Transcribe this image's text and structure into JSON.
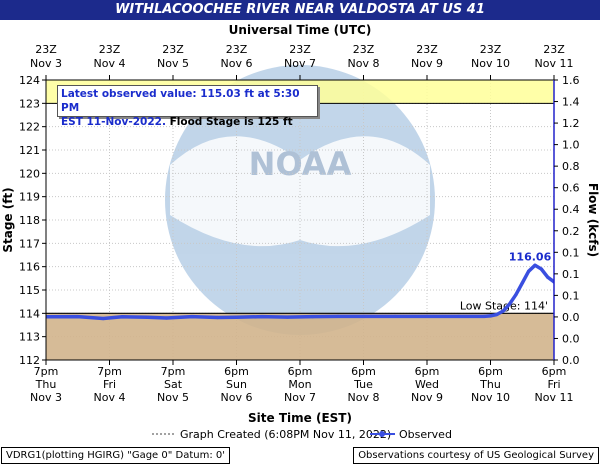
{
  "title": "WITHLACOOCHEE RIVER NEAR VALDOSTA AT US 41",
  "colors": {
    "title_bar": "#1c2a8c",
    "observed_line": "#3a4fe0",
    "flood_band": "#ffff99",
    "low_band": "#d2b48c"
  },
  "info": {
    "line1": "Latest observed value: 115.03 ft at 5:30 PM",
    "line2_date": "EST 11-Nov-2022.",
    "line2_flood": "Flood Stage is 125 ft"
  },
  "legend": {
    "graph_created": "Graph Created (6:08PM Nov 11, 2022)",
    "observed": "Observed"
  },
  "footer": {
    "left": "VDRG1(plotting HGIRG) \"Gage 0\" Datum: 0'",
    "right": "Observations courtesy of US Geological Survey"
  },
  "chart_data": {
    "type": "line",
    "title": "WITHLACOOCHEE RIVER NEAR VALDOSTA AT US 41",
    "xlabel": "Site Time (EST)",
    "x2label": "Universal Time (UTC)",
    "ylabel": "Stage (ft)",
    "y2label": "Flow (kcfs)",
    "ylim": [
      112,
      124
    ],
    "y2lim": [
      0.0,
      1.6
    ],
    "yticks": [
      112,
      113,
      114,
      115,
      116,
      117,
      118,
      119,
      120,
      121,
      122,
      123,
      124
    ],
    "y2ticks": [
      "0.0",
      "0.0",
      "0.0",
      "0.1",
      "0.1",
      "0.1",
      "0.2",
      "0.4",
      "0.6",
      "0.8",
      "1.0",
      "1.2",
      "1.4",
      "1.6"
    ],
    "x_bottom_ticks": [
      {
        "time": "7pm",
        "day": "Thu",
        "date": "Nov 3"
      },
      {
        "time": "7pm",
        "day": "Fri",
        "date": "Nov 4"
      },
      {
        "time": "7pm",
        "day": "Sat",
        "date": "Nov 5"
      },
      {
        "time": "6pm",
        "day": "Sun",
        "date": "Nov 6"
      },
      {
        "time": "6pm",
        "day": "Mon",
        "date": "Nov 7"
      },
      {
        "time": "6pm",
        "day": "Tue",
        "date": "Nov 8"
      },
      {
        "time": "6pm",
        "day": "Wed",
        "date": "Nov 9"
      },
      {
        "time": "6pm",
        "day": "Thu",
        "date": "Nov 10"
      },
      {
        "time": "6pm",
        "day": "Fri",
        "date": "Nov 11"
      }
    ],
    "x_top_ticks": [
      {
        "time": "23Z",
        "date": "Nov  3"
      },
      {
        "time": "23Z",
        "date": "Nov  4"
      },
      {
        "time": "23Z",
        "date": "Nov  5"
      },
      {
        "time": "23Z",
        "date": "Nov  6"
      },
      {
        "time": "23Z",
        "date": "Nov  7"
      },
      {
        "time": "23Z",
        "date": "Nov  8"
      },
      {
        "time": "23Z",
        "date": "Nov  9"
      },
      {
        "time": "23Z",
        "date": "Nov 10"
      },
      {
        "time": "23Z",
        "date": "Nov 11"
      }
    ],
    "flood_stage": 125,
    "low_stage": 114,
    "low_stage_label": "Low Stage: 114'",
    "peak_label": "116.06 ft",
    "peak": {
      "day": 7.7,
      "stage": 116.06
    },
    "observed": [
      {
        "day": 0.0,
        "stage": 113.85
      },
      {
        "day": 0.5,
        "stage": 113.86
      },
      {
        "day": 0.9,
        "stage": 113.78
      },
      {
        "day": 1.2,
        "stage": 113.85
      },
      {
        "day": 1.6,
        "stage": 113.83
      },
      {
        "day": 1.9,
        "stage": 113.8
      },
      {
        "day": 2.3,
        "stage": 113.86
      },
      {
        "day": 2.7,
        "stage": 113.82
      },
      {
        "day": 3.0,
        "stage": 113.83
      },
      {
        "day": 3.4,
        "stage": 113.86
      },
      {
        "day": 3.8,
        "stage": 113.84
      },
      {
        "day": 4.2,
        "stage": 113.86
      },
      {
        "day": 4.6,
        "stage": 113.87
      },
      {
        "day": 5.0,
        "stage": 113.87
      },
      {
        "day": 5.5,
        "stage": 113.87
      },
      {
        "day": 6.0,
        "stage": 113.87
      },
      {
        "day": 6.5,
        "stage": 113.87
      },
      {
        "day": 6.9,
        "stage": 113.87
      },
      {
        "day": 7.0,
        "stage": 113.89
      },
      {
        "day": 7.1,
        "stage": 113.95
      },
      {
        "day": 7.2,
        "stage": 114.1
      },
      {
        "day": 7.3,
        "stage": 114.4
      },
      {
        "day": 7.4,
        "stage": 114.8
      },
      {
        "day": 7.5,
        "stage": 115.3
      },
      {
        "day": 7.6,
        "stage": 115.8
      },
      {
        "day": 7.7,
        "stage": 116.06
      },
      {
        "day": 7.8,
        "stage": 115.9
      },
      {
        "day": 7.9,
        "stage": 115.55
      },
      {
        "day": 8.0,
        "stage": 115.35
      },
      {
        "day": 8.1,
        "stage": 115.25
      },
      {
        "day": 8.2,
        "stage": 115.22
      },
      {
        "day": 8.3,
        "stage": 115.18
      },
      {
        "day": 8.4,
        "stage": 115.1
      },
      {
        "day": 8.5,
        "stage": 115.03
      }
    ]
  }
}
